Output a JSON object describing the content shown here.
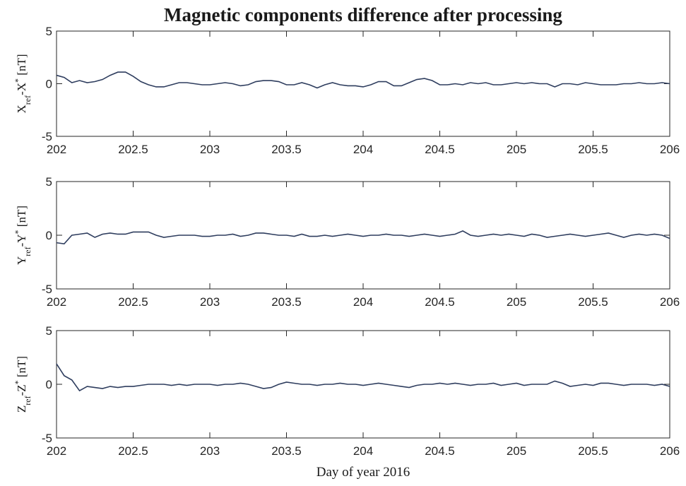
{
  "chart_data": [
    {
      "type": "line",
      "title": "Magnetic components difference after processing",
      "ylabel": [
        "X",
        "ref",
        "-X",
        "*",
        " [nT]"
      ],
      "color": "#2e3d5e",
      "xlim": [
        202,
        206
      ],
      "xticks": [
        202,
        202.5,
        203,
        203.5,
        204,
        204.5,
        205,
        205.5,
        206
      ],
      "ylim": [
        -5,
        5
      ],
      "yticks": [
        -5,
        0,
        5
      ],
      "x": [
        202,
        202.05,
        202.1,
        202.15,
        202.2,
        202.25,
        202.3,
        202.35,
        202.4,
        202.45,
        202.5,
        202.55,
        202.6,
        202.65,
        202.7,
        202.75,
        202.8,
        202.85,
        202.9,
        202.95,
        203,
        203.05,
        203.1,
        203.15,
        203.2,
        203.25,
        203.3,
        203.35,
        203.4,
        203.45,
        203.5,
        203.55,
        203.6,
        203.65,
        203.7,
        203.75,
        203.8,
        203.85,
        203.9,
        203.95,
        204,
        204.05,
        204.1,
        204.15,
        204.2,
        204.25,
        204.3,
        204.35,
        204.4,
        204.45,
        204.5,
        204.55,
        204.6,
        204.65,
        204.7,
        204.75,
        204.8,
        204.85,
        204.9,
        204.95,
        205,
        205.05,
        205.1,
        205.15,
        205.2,
        205.25,
        205.3,
        205.35,
        205.4,
        205.45,
        205.5,
        205.55,
        205.6,
        205.65,
        205.7,
        205.75,
        205.8,
        205.85,
        205.9,
        205.95,
        206
      ],
      "values": [
        0.8,
        0.6,
        0.1,
        0.3,
        0.1,
        0.2,
        0.4,
        0.8,
        1.1,
        1.1,
        0.7,
        0.2,
        -0.1,
        -0.3,
        -0.3,
        -0.1,
        0.1,
        0.1,
        0,
        -0.1,
        -0.1,
        0,
        0.1,
        0,
        -0.2,
        -0.1,
        0.2,
        0.3,
        0.3,
        0.2,
        -0.1,
        -0.1,
        0.1,
        -0.1,
        -0.4,
        -0.1,
        0.1,
        -0.1,
        -0.2,
        -0.2,
        -0.3,
        -0.1,
        0.2,
        0.2,
        -0.2,
        -0.2,
        0.1,
        0.4,
        0.5,
        0.3,
        -0.1,
        -0.1,
        0,
        -0.1,
        0.1,
        0,
        0.1,
        -0.1,
        -0.1,
        0,
        0.1,
        0,
        0.1,
        0,
        0,
        -0.3,
        0,
        0,
        -0.1,
        0.1,
        0,
        -0.1,
        -0.1,
        -0.1,
        0,
        0,
        0.1,
        0,
        0,
        0.1,
        0
      ]
    },
    {
      "type": "line",
      "ylabel": [
        "Y",
        "ref",
        "-Y",
        "*",
        " [nT]"
      ],
      "color": "#2e3d5e",
      "xlim": [
        202,
        206
      ],
      "xticks": [
        202,
        202.5,
        203,
        203.5,
        204,
        204.5,
        205,
        205.5,
        206
      ],
      "ylim": [
        -5,
        5
      ],
      "yticks": [
        -5,
        0,
        5
      ],
      "x": [
        202,
        202.05,
        202.1,
        202.15,
        202.2,
        202.25,
        202.3,
        202.35,
        202.4,
        202.45,
        202.5,
        202.55,
        202.6,
        202.65,
        202.7,
        202.75,
        202.8,
        202.85,
        202.9,
        202.95,
        203,
        203.05,
        203.1,
        203.15,
        203.2,
        203.25,
        203.3,
        203.35,
        203.4,
        203.45,
        203.5,
        203.55,
        203.6,
        203.65,
        203.7,
        203.75,
        203.8,
        203.85,
        203.9,
        203.95,
        204,
        204.05,
        204.1,
        204.15,
        204.2,
        204.25,
        204.3,
        204.35,
        204.4,
        204.45,
        204.5,
        204.55,
        204.6,
        204.65,
        204.7,
        204.75,
        204.8,
        204.85,
        204.9,
        204.95,
        205,
        205.05,
        205.1,
        205.15,
        205.2,
        205.25,
        205.3,
        205.35,
        205.4,
        205.45,
        205.5,
        205.55,
        205.6,
        205.65,
        205.7,
        205.75,
        205.8,
        205.85,
        205.9,
        205.95,
        206
      ],
      "values": [
        -0.7,
        -0.8,
        0,
        0.1,
        0.2,
        -0.2,
        0.1,
        0.2,
        0.1,
        0.1,
        0.3,
        0.3,
        0.3,
        0,
        -0.2,
        -0.1,
        0,
        0,
        0,
        -0.1,
        -0.1,
        0,
        0,
        0.1,
        -0.1,
        0,
        0.2,
        0.2,
        0.1,
        0,
        0,
        -0.1,
        0.1,
        -0.1,
        -0.1,
        0,
        -0.1,
        0,
        0.1,
        0,
        -0.1,
        0,
        0,
        0.1,
        0,
        0,
        -0.1,
        0,
        0.1,
        0,
        -0.1,
        0,
        0.1,
        0.4,
        0,
        -0.1,
        0,
        0.1,
        0,
        0.1,
        0,
        -0.1,
        0.1,
        0,
        -0.2,
        -0.1,
        0,
        0.1,
        0,
        -0.1,
        0,
        0.1,
        0.2,
        0,
        -0.2,
        0,
        0.1,
        0,
        0.1,
        0,
        -0.3
      ]
    },
    {
      "type": "line",
      "ylabel": [
        "Z",
        "ref",
        "-Z",
        "*",
        " [nT]"
      ],
      "xlabel": "Day of year 2016",
      "color": "#2e3d5e",
      "xlim": [
        202,
        206
      ],
      "xticks": [
        202,
        202.5,
        203,
        203.5,
        204,
        204.5,
        205,
        205.5,
        206
      ],
      "ylim": [
        -5,
        5
      ],
      "yticks": [
        -5,
        0,
        5
      ],
      "x": [
        202,
        202.05,
        202.1,
        202.15,
        202.2,
        202.25,
        202.3,
        202.35,
        202.4,
        202.45,
        202.5,
        202.55,
        202.6,
        202.65,
        202.7,
        202.75,
        202.8,
        202.85,
        202.9,
        202.95,
        203,
        203.05,
        203.1,
        203.15,
        203.2,
        203.25,
        203.3,
        203.35,
        203.4,
        203.45,
        203.5,
        203.55,
        203.6,
        203.65,
        203.7,
        203.75,
        203.8,
        203.85,
        203.9,
        203.95,
        204,
        204.05,
        204.1,
        204.15,
        204.2,
        204.25,
        204.3,
        204.35,
        204.4,
        204.45,
        204.5,
        204.55,
        204.6,
        204.65,
        204.7,
        204.75,
        204.8,
        204.85,
        204.9,
        204.95,
        205,
        205.05,
        205.1,
        205.15,
        205.2,
        205.25,
        205.3,
        205.35,
        205.4,
        205.45,
        205.5,
        205.55,
        205.6,
        205.65,
        205.7,
        205.75,
        205.8,
        205.85,
        205.9,
        205.95,
        206
      ],
      "values": [
        1.9,
        0.8,
        0.4,
        -0.6,
        -0.2,
        -0.3,
        -0.4,
        -0.2,
        -0.3,
        -0.2,
        -0.2,
        -0.1,
        0,
        0,
        0,
        -0.1,
        0,
        -0.1,
        0,
        0,
        0,
        -0.1,
        0,
        0,
        0.1,
        0,
        -0.2,
        -0.4,
        -0.3,
        0,
        0.2,
        0.1,
        0,
        0,
        -0.1,
        0,
        0,
        0.1,
        0,
        0,
        -0.1,
        0,
        0.1,
        0,
        -0.1,
        -0.2,
        -0.3,
        -0.1,
        0,
        0,
        0.1,
        0,
        0.1,
        0,
        -0.1,
        0,
        0,
        0.1,
        -0.1,
        0,
        0.1,
        -0.1,
        0,
        0,
        0,
        0.3,
        0.1,
        -0.2,
        -0.1,
        0,
        -0.1,
        0.1,
        0.1,
        0,
        -0.1,
        0,
        0,
        0,
        -0.1,
        0,
        -0.2
      ]
    }
  ]
}
